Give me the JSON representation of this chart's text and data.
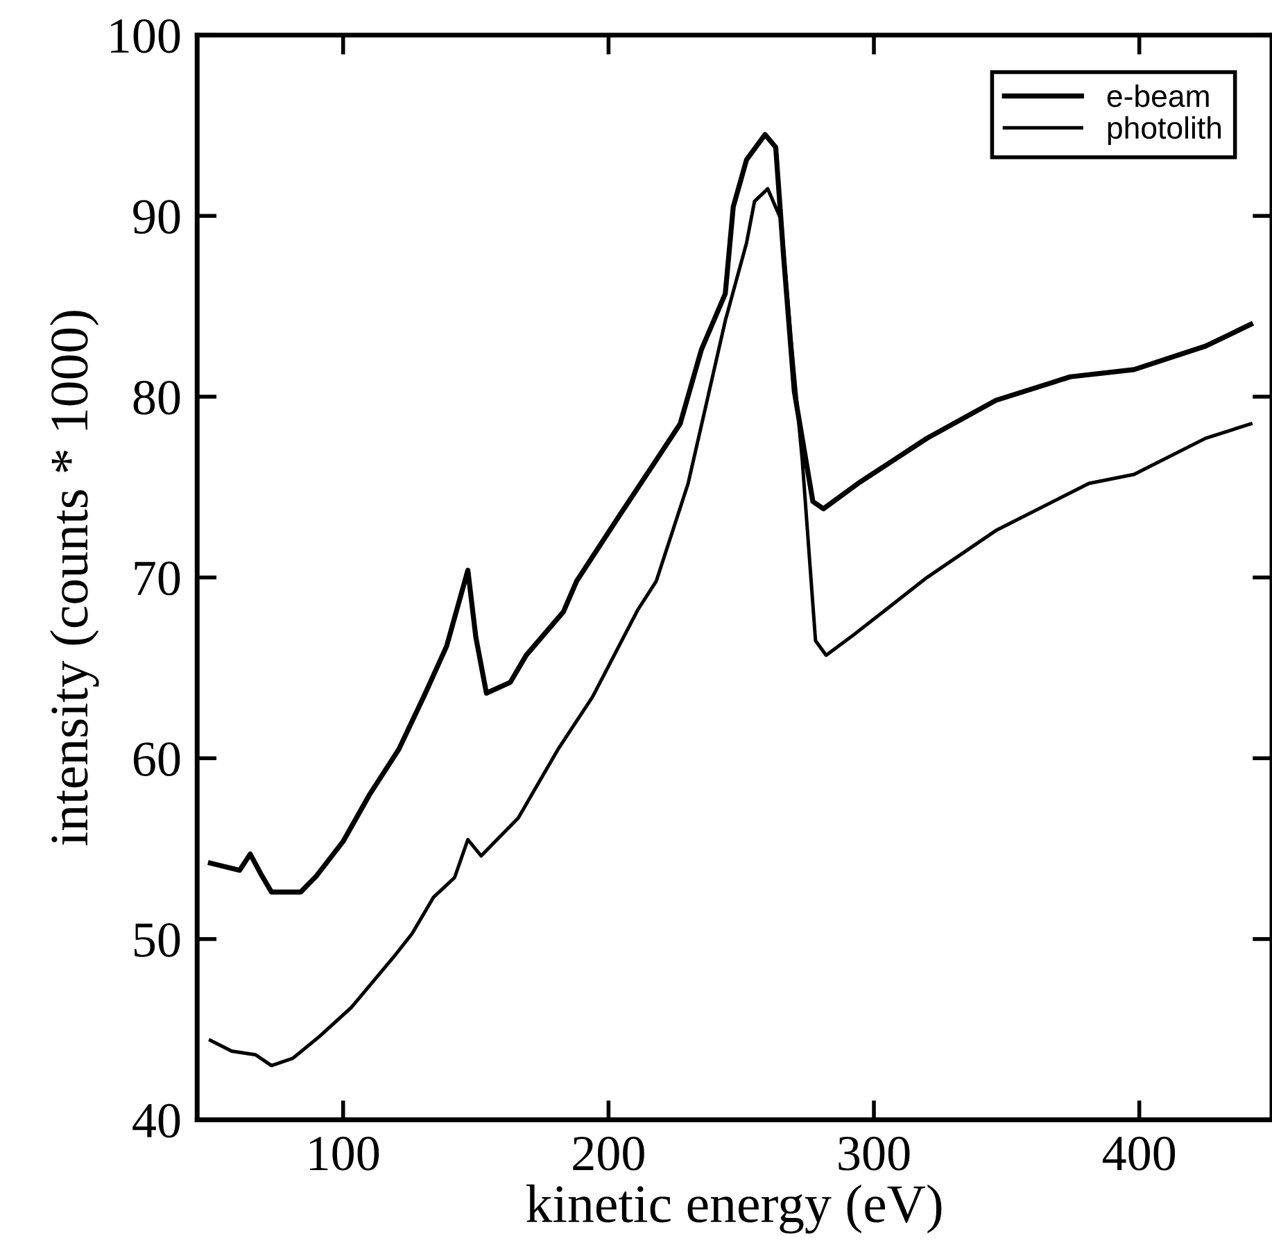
{
  "chart_data": {
    "type": "line",
    "xlabel": "kinetic energy (eV)",
    "ylabel": "intensity (counts * 1000)",
    "xlim": [
      45,
      450
    ],
    "xticks": [
      100,
      200,
      300,
      400
    ],
    "ylim": [
      40,
      100
    ],
    "yticks": [
      40,
      50,
      60,
      70,
      80,
      90,
      100
    ],
    "grid": false,
    "legend": "top right",
    "line_style": "solid",
    "marker": "none",
    "series": [
      {
        "name": "e-beam",
        "color": "#000000",
        "x": [
          50,
          61,
          65,
          69,
          73,
          84,
          90,
          100,
          110,
          121,
          131,
          139,
          147,
          150,
          154,
          163,
          169,
          183,
          188,
          204,
          218,
          227,
          235,
          244,
          247,
          252,
          259,
          263,
          266,
          270,
          277,
          281,
          294,
          320,
          346,
          374,
          398,
          425,
          442
        ],
        "values": [
          54.2,
          53.8,
          54.7,
          53.6,
          52.6,
          52.6,
          53.5,
          55.4,
          58.0,
          60.5,
          63.6,
          66.2,
          70.4,
          66.7,
          63.6,
          64.2,
          65.7,
          68.1,
          69.8,
          73.4,
          76.5,
          78.5,
          82.6,
          85.7,
          90.5,
          93.1,
          94.5,
          93.8,
          87.7,
          80.3,
          74.2,
          73.8,
          75.2,
          77.7,
          79.8,
          81.1,
          81.5,
          82.8,
          84.0
        ]
      },
      {
        "name": "photolith",
        "color": "#000000",
        "x": [
          50,
          58,
          67,
          73,
          81,
          91,
          103,
          119,
          126,
          134,
          142,
          147,
          152,
          166,
          181,
          194,
          211,
          218,
          230,
          244,
          252,
          255,
          260,
          265,
          269,
          273,
          278,
          282,
          293,
          300,
          320,
          346,
          381,
          398,
          425,
          442
        ],
        "values": [
          44.4,
          43.8,
          43.6,
          43.0,
          43.4,
          44.6,
          46.2,
          49.0,
          50.3,
          52.3,
          53.4,
          55.5,
          54.6,
          56.7,
          60.5,
          63.4,
          68.2,
          69.8,
          75.2,
          84.2,
          88.5,
          90.8,
          91.5,
          89.8,
          82.8,
          76.5,
          66.5,
          65.7,
          66.9,
          67.7,
          70.0,
          72.6,
          75.2,
          75.7,
          77.7,
          78.5
        ]
      }
    ]
  }
}
